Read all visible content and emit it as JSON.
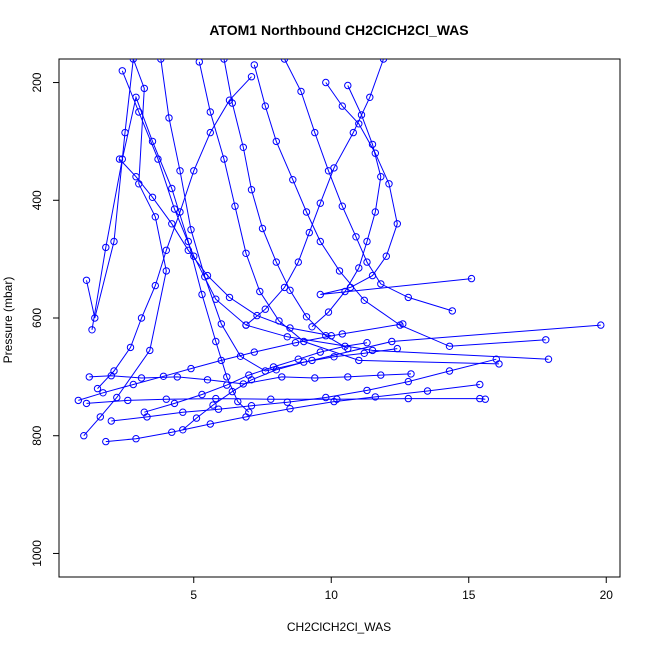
{
  "chart_data": {
    "type": "scatter",
    "title": "ATOM1 Northbound CH2ClCH2Cl_WAS",
    "xlabel": "CH2ClCH2Cl_WAS",
    "ylabel": "Pressure (mbar)",
    "xlim": [
      0.1,
      20.5
    ],
    "ylim": [
      1040,
      160
    ],
    "y_reversed": true,
    "x_ticks": [
      5,
      10,
      15,
      20
    ],
    "y_ticks": [
      200,
      400,
      600,
      800,
      1000
    ],
    "grid": false,
    "legend": "none",
    "marker": "open-circle",
    "series_color": "#0000ff",
    "series": [
      {
        "points": [
          [
            1.1,
            536
          ],
          [
            1.4,
            600
          ],
          [
            2.1,
            470
          ],
          [
            2.5,
            285
          ],
          [
            2.8,
            160
          ],
          [
            3.2,
            210
          ],
          [
            3.0,
            372
          ],
          [
            3.6,
            428
          ],
          [
            4.0,
            520
          ],
          [
            3.4,
            655
          ],
          [
            2.2,
            735
          ],
          [
            1.6,
            768
          ],
          [
            1.0,
            800
          ]
        ]
      },
      {
        "points": [
          [
            1.3,
            620
          ],
          [
            1.8,
            480
          ],
          [
            2.4,
            330
          ],
          [
            2.9,
            225
          ],
          [
            3.5,
            300
          ],
          [
            4.2,
            380
          ],
          [
            4.8,
            470
          ],
          [
            5.3,
            560
          ],
          [
            5.8,
            640
          ],
          [
            6.2,
            700
          ],
          [
            6.6,
            742
          ],
          [
            7.0,
            760
          ]
        ]
      },
      {
        "points": [
          [
            1.2,
            700
          ],
          [
            2.0,
            698
          ],
          [
            3.1,
            702
          ],
          [
            4.4,
            700
          ],
          [
            5.5,
            705
          ],
          [
            6.8,
            712
          ],
          [
            8.2,
            700
          ],
          [
            9.4,
            702
          ],
          [
            10.6,
            700
          ],
          [
            11.8,
            697
          ],
          [
            12.9,
            695
          ]
        ]
      },
      {
        "points": [
          [
            3.8,
            160
          ],
          [
            4.1,
            260
          ],
          [
            4.5,
            350
          ],
          [
            4.9,
            450
          ],
          [
            5.4,
            530
          ],
          [
            6.0,
            610
          ],
          [
            6.7,
            665
          ],
          [
            7.6,
            690
          ],
          [
            9.3,
            672
          ],
          [
            12.2,
            640
          ],
          [
            19.8,
            612
          ]
        ]
      },
      {
        "points": [
          [
            2.4,
            180
          ],
          [
            3.0,
            250
          ],
          [
            3.7,
            330
          ],
          [
            4.3,
            415
          ],
          [
            5.0,
            495
          ],
          [
            5.8,
            568
          ],
          [
            6.9,
            612
          ],
          [
            8.4,
            632
          ],
          [
            11.5,
            655
          ],
          [
            17.9,
            670
          ]
        ]
      },
      {
        "points": [
          [
            5.2,
            165
          ],
          [
            5.6,
            250
          ],
          [
            6.1,
            330
          ],
          [
            6.5,
            410
          ],
          [
            6.9,
            490
          ],
          [
            7.4,
            555
          ],
          [
            8.1,
            605
          ],
          [
            9.0,
            640
          ],
          [
            11.0,
            672
          ],
          [
            16.1,
            678
          ]
        ]
      },
      {
        "points": [
          [
            7.2,
            170
          ],
          [
            7.6,
            240
          ],
          [
            8.0,
            300
          ],
          [
            8.6,
            365
          ],
          [
            9.1,
            420
          ],
          [
            9.6,
            470
          ],
          [
            10.3,
            520
          ],
          [
            11.2,
            570
          ],
          [
            12.5,
            612
          ],
          [
            14.3,
            648
          ],
          [
            17.8,
            637
          ]
        ]
      },
      {
        "points": [
          [
            9.8,
            200
          ],
          [
            10.4,
            240
          ],
          [
            11.0,
            270
          ],
          [
            11.6,
            320
          ],
          [
            12.1,
            372
          ],
          [
            12.4,
            440
          ],
          [
            12.0,
            495
          ],
          [
            11.5,
            528
          ],
          [
            10.7,
            548
          ],
          [
            9.6,
            560
          ],
          [
            15.1,
            533
          ]
        ]
      },
      {
        "points": [
          [
            8.3,
            160
          ],
          [
            8.9,
            215
          ],
          [
            9.4,
            285
          ],
          [
            9.9,
            350
          ],
          [
            10.4,
            410
          ],
          [
            10.9,
            462
          ],
          [
            11.3,
            505
          ],
          [
            11.8,
            542
          ],
          [
            12.8,
            565
          ],
          [
            14.4,
            588
          ]
        ]
      },
      {
        "points": [
          [
            1.1,
            745
          ],
          [
            2.6,
            740
          ],
          [
            4.0,
            738
          ],
          [
            5.8,
            737
          ],
          [
            7.8,
            738
          ],
          [
            10.2,
            738
          ],
          [
            12.8,
            737
          ],
          [
            15.4,
            737
          ],
          [
            15.6,
            738
          ]
        ]
      },
      {
        "points": [
          [
            1.8,
            810
          ],
          [
            2.9,
            805
          ],
          [
            4.2,
            794
          ],
          [
            5.6,
            780
          ],
          [
            6.9,
            768
          ],
          [
            8.5,
            754
          ],
          [
            10.1,
            742
          ],
          [
            11.6,
            734
          ],
          [
            13.5,
            724
          ],
          [
            15.4,
            713
          ]
        ]
      },
      {
        "points": [
          [
            2.0,
            775
          ],
          [
            3.3,
            768
          ],
          [
            4.6,
            760
          ],
          [
            5.9,
            755
          ],
          [
            7.1,
            749
          ],
          [
            8.4,
            743
          ],
          [
            9.8,
            735
          ],
          [
            11.3,
            723
          ],
          [
            12.8,
            708
          ],
          [
            14.3,
            690
          ],
          [
            16.0,
            670
          ]
        ]
      },
      {
        "points": [
          [
            0.8,
            740
          ],
          [
            1.7,
            727
          ],
          [
            2.8,
            713
          ],
          [
            3.9,
            699
          ],
          [
            4.9,
            686
          ],
          [
            6.0,
            672
          ],
          [
            7.2,
            658
          ],
          [
            8.7,
            642
          ],
          [
            10.4,
            627
          ],
          [
            12.6,
            610
          ]
        ]
      },
      {
        "points": [
          [
            6.1,
            160
          ],
          [
            6.4,
            235
          ],
          [
            6.8,
            310
          ],
          [
            7.1,
            382
          ],
          [
            7.5,
            448
          ],
          [
            8.0,
            505
          ],
          [
            8.5,
            553
          ],
          [
            9.1,
            598
          ],
          [
            9.8,
            630
          ],
          [
            10.6,
            652
          ]
        ]
      },
      {
        "points": [
          [
            10.6,
            205
          ],
          [
            11.1,
            255
          ],
          [
            11.5,
            305
          ],
          [
            11.8,
            360
          ],
          [
            11.6,
            420
          ],
          [
            11.3,
            470
          ],
          [
            11.0,
            515
          ],
          [
            10.5,
            555
          ],
          [
            9.9,
            590
          ],
          [
            9.3,
            615
          ]
        ]
      },
      {
        "points": [
          [
            1.5,
            720
          ],
          [
            2.1,
            690
          ],
          [
            2.7,
            650
          ],
          [
            3.1,
            600
          ],
          [
            3.6,
            545
          ],
          [
            4.0,
            485
          ],
          [
            4.5,
            420
          ],
          [
            5.0,
            350
          ],
          [
            5.6,
            285
          ],
          [
            6.3,
            230
          ],
          [
            7.1,
            190
          ]
        ]
      },
      {
        "points": [
          [
            3.2,
            760
          ],
          [
            4.3,
            745
          ],
          [
            5.3,
            730
          ],
          [
            6.2,
            714
          ],
          [
            7.0,
            697
          ],
          [
            7.9,
            683
          ],
          [
            8.8,
            670
          ],
          [
            9.6,
            658
          ],
          [
            10.5,
            648
          ],
          [
            11.3,
            642
          ]
        ]
      },
      {
        "points": [
          [
            2.3,
            330
          ],
          [
            2.9,
            360
          ],
          [
            3.5,
            395
          ],
          [
            4.2,
            440
          ],
          [
            4.8,
            485
          ],
          [
            5.5,
            528
          ],
          [
            6.3,
            565
          ],
          [
            7.3,
            596
          ],
          [
            8.5,
            617
          ],
          [
            10.0,
            630
          ]
        ]
      },
      {
        "points": [
          [
            11.9,
            160
          ],
          [
            11.4,
            225
          ],
          [
            10.8,
            285
          ],
          [
            10.1,
            345
          ],
          [
            9.6,
            405
          ],
          [
            9.2,
            455
          ],
          [
            8.8,
            505
          ],
          [
            8.3,
            548
          ],
          [
            7.6,
            585
          ],
          [
            6.9,
            612
          ]
        ]
      },
      {
        "points": [
          [
            4.6,
            790
          ],
          [
            5.1,
            770
          ],
          [
            5.7,
            748
          ],
          [
            6.4,
            725
          ],
          [
            7.1,
            705
          ],
          [
            8.0,
            688
          ],
          [
            9.0,
            675
          ],
          [
            10.1,
            666
          ],
          [
            11.2,
            660
          ],
          [
            12.4,
            652
          ]
        ]
      }
    ]
  }
}
